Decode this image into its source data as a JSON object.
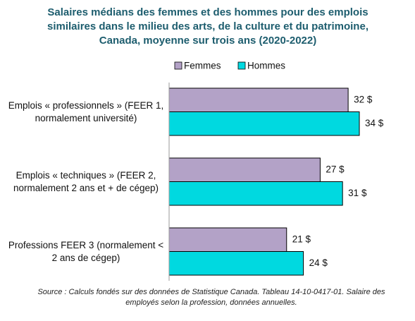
{
  "chart_data": {
    "type": "bar",
    "orientation": "horizontal",
    "title": "Salaires médians des femmes et des hommes pour des emplois similaires dans le milieu des arts, de la culture et du patrimoine, Canada, moyenne sur trois ans (2020-2022)",
    "categories": [
      "Emplois « professionnels » (FEER 1, normalement université)",
      "Emplois « techniques » (FEER 2, normalement 2 ans et + de cégep)",
      "Professions FEER 3 (normalement < 2 ans de cégep)"
    ],
    "series": [
      {
        "name": "Femmes",
        "color": "#b3a2c7",
        "values": [
          32,
          27,
          21
        ],
        "value_labels": [
          "32 $",
          "27 $",
          "21 $"
        ]
      },
      {
        "name": "Hommes",
        "color": "#00d9e0",
        "values": [
          34,
          31,
          24
        ],
        "value_labels": [
          "34 $",
          "31 $",
          "24 $"
        ]
      }
    ],
    "legend": "top",
    "source": "Source : Calculs fondés sur des données de Statistique Canada. Tableau 14-10-0417-01.  Salaire des employés selon la profession, données annuelles."
  }
}
